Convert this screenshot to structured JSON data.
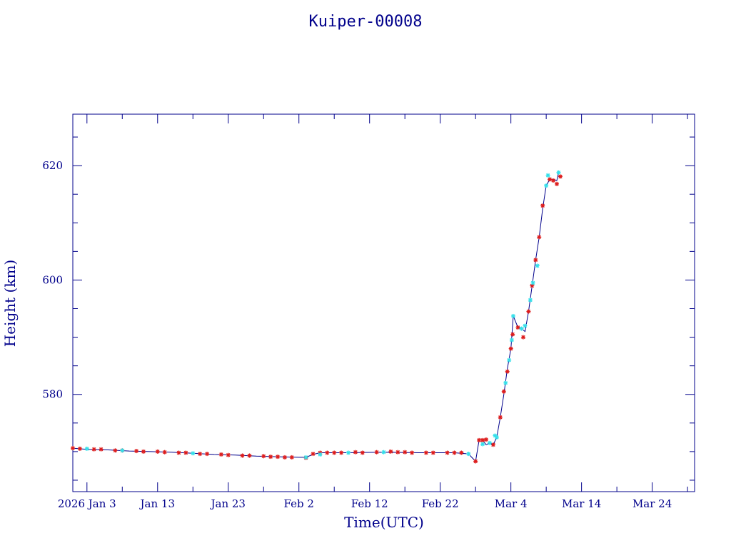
{
  "colors": {
    "axes": "#00008b",
    "line": "#00008b",
    "series_red": "#dd1c1c",
    "series_cyan": "#35e0ea"
  },
  "chart_data": {
    "type": "scatter",
    "title": "Kuiper-00008",
    "xlabel": "Time(UTC)",
    "ylabel": "Height (km)",
    "x_unit": "date (2026, UTC)",
    "xlim": [
      "2026-01-01",
      "2026-03-30"
    ],
    "ylim": [
      563,
      629
    ],
    "grid": false,
    "x_ticks": [
      {
        "date": "2026-01-03",
        "label": "2026 Jan  3"
      },
      {
        "date": "2026-01-13",
        "label": "Jan 13"
      },
      {
        "date": "2026-01-23",
        "label": "Jan 23"
      },
      {
        "date": "2026-02-02",
        "label": "Feb  2"
      },
      {
        "date": "2026-02-12",
        "label": "Feb 12"
      },
      {
        "date": "2026-02-22",
        "label": "Feb 22"
      },
      {
        "date": "2026-03-04",
        "label": "Mar  4"
      },
      {
        "date": "2026-03-14",
        "label": "Mar 14"
      },
      {
        "date": "2026-03-24",
        "label": "Mar 24"
      }
    ],
    "y_ticks": [
      580,
      600,
      620
    ],
    "series": [
      {
        "style": "line",
        "color": "#00008b",
        "points": [
          [
            "2026-01-01",
            570.6
          ],
          [
            "2026-01-03",
            570.4
          ],
          [
            "2026-01-06",
            570.3
          ],
          [
            "2026-01-09",
            570.1
          ],
          [
            "2026-01-12",
            570.0
          ],
          [
            "2026-01-15",
            569.9
          ],
          [
            "2026-01-18",
            569.7
          ],
          [
            "2026-01-21",
            569.5
          ],
          [
            "2026-01-24",
            569.4
          ],
          [
            "2026-01-27",
            569.2
          ],
          [
            "2026-01-30",
            569.1
          ],
          [
            "2026-02-02",
            569.0
          ],
          [
            "2026-02-03",
            569.0
          ],
          [
            "2026-02-04",
            569.5
          ],
          [
            "2026-02-05",
            569.8
          ],
          [
            "2026-02-09",
            569.8
          ],
          [
            "2026-02-14",
            569.9
          ],
          [
            "2026-02-19",
            569.8
          ],
          [
            "2026-02-24",
            569.8
          ],
          [
            "2026-02-26",
            569.6
          ],
          [
            "2026-02-27",
            568.3
          ],
          [
            "2026-02-27T12:00",
            572.0
          ],
          [
            "2026-02-28",
            572.0
          ],
          [
            "2026-02-28T12:00",
            571.2
          ],
          [
            "2026-03-01",
            571.5
          ],
          [
            "2026-03-01T12:00",
            571.2
          ],
          [
            "2026-03-02",
            572.5
          ],
          [
            "2026-03-02T12:00",
            576.0
          ],
          [
            "2026-03-03",
            580.0
          ],
          [
            "2026-03-03T12:00",
            584.5
          ],
          [
            "2026-03-04",
            588.0
          ],
          [
            "2026-03-04T08:00",
            593.7
          ],
          [
            "2026-03-05",
            591.7
          ],
          [
            "2026-03-05T12:00",
            591.5
          ],
          [
            "2026-03-06",
            591.0
          ],
          [
            "2026-03-06T12:00",
            594.5
          ],
          [
            "2026-03-07",
            599.0
          ],
          [
            "2026-03-07T12:00",
            603.5
          ],
          [
            "2026-03-08",
            607.5
          ],
          [
            "2026-03-08T12:00",
            612.5
          ],
          [
            "2026-03-09",
            616.5
          ],
          [
            "2026-03-09T12:00",
            617.6
          ],
          [
            "2026-03-10",
            617.6
          ],
          [
            "2026-03-10T12:00",
            617.4
          ],
          [
            "2026-03-10T18:00",
            618.8
          ]
        ]
      },
      {
        "style": "markers",
        "color": "#dd1c1c",
        "points": [
          [
            "2026-01-01",
            570.6
          ],
          [
            "2026-01-02",
            570.5
          ],
          [
            "2026-01-04",
            570.4
          ],
          [
            "2026-01-05",
            570.4
          ],
          [
            "2026-01-07",
            570.2
          ],
          [
            "2026-01-08",
            570.2
          ],
          [
            "2026-01-10",
            570.1
          ],
          [
            "2026-01-11",
            570.0
          ],
          [
            "2026-01-13",
            570.0
          ],
          [
            "2026-01-14",
            569.9
          ],
          [
            "2026-01-16",
            569.8
          ],
          [
            "2026-01-17",
            569.8
          ],
          [
            "2026-01-19",
            569.6
          ],
          [
            "2026-01-20",
            569.6
          ],
          [
            "2026-01-22",
            569.5
          ],
          [
            "2026-01-23",
            569.4
          ],
          [
            "2026-01-25",
            569.3
          ],
          [
            "2026-01-26",
            569.3
          ],
          [
            "2026-01-28",
            569.2
          ],
          [
            "2026-01-29",
            569.1
          ],
          [
            "2026-01-30",
            569.1
          ],
          [
            "2026-01-31",
            569.0
          ],
          [
            "2026-02-01",
            569.0
          ],
          [
            "2026-02-03",
            568.9
          ],
          [
            "2026-02-04",
            569.6
          ],
          [
            "2026-02-05",
            569.8
          ],
          [
            "2026-02-06",
            569.8
          ],
          [
            "2026-02-07",
            569.8
          ],
          [
            "2026-02-08",
            569.8
          ],
          [
            "2026-02-10",
            569.9
          ],
          [
            "2026-02-11",
            569.8
          ],
          [
            "2026-02-13",
            569.9
          ],
          [
            "2026-02-15",
            570.0
          ],
          [
            "2026-02-16",
            569.9
          ],
          [
            "2026-02-17",
            569.9
          ],
          [
            "2026-02-18",
            569.8
          ],
          [
            "2026-02-20",
            569.8
          ],
          [
            "2026-02-21",
            569.8
          ],
          [
            "2026-02-23",
            569.8
          ],
          [
            "2026-02-24",
            569.8
          ],
          [
            "2026-02-25",
            569.8
          ],
          [
            "2026-02-27",
            568.3
          ],
          [
            "2026-02-27T12:00",
            572.0
          ],
          [
            "2026-02-28",
            572.0
          ],
          [
            "2026-02-28T12:00",
            572.1
          ],
          [
            "2026-03-01T12:00",
            571.2
          ],
          [
            "2026-03-02T12:00",
            576.0
          ],
          [
            "2026-03-03",
            580.5
          ],
          [
            "2026-03-03T12:00",
            584.0
          ],
          [
            "2026-03-04",
            588.0
          ],
          [
            "2026-03-04T06:00",
            590.5
          ],
          [
            "2026-03-05",
            591.7
          ],
          [
            "2026-03-05T18:00",
            590.0
          ],
          [
            "2026-03-06T12:00",
            594.5
          ],
          [
            "2026-03-07",
            599.0
          ],
          [
            "2026-03-07T12:00",
            603.5
          ],
          [
            "2026-03-08",
            607.5
          ],
          [
            "2026-03-08T12:00",
            613.0
          ],
          [
            "2026-03-09T12:00",
            617.6
          ],
          [
            "2026-03-10",
            617.4
          ],
          [
            "2026-03-10T12:00",
            616.8
          ],
          [
            "2026-03-11",
            618.1
          ]
        ]
      },
      {
        "style": "markers",
        "color": "#35e0ea",
        "points": [
          [
            "2026-01-03",
            570.5
          ],
          [
            "2026-01-08",
            570.2
          ],
          [
            "2026-01-18",
            569.7
          ],
          [
            "2026-02-03",
            569.0
          ],
          [
            "2026-02-05",
            569.5
          ],
          [
            "2026-02-09",
            569.8
          ],
          [
            "2026-02-14",
            569.9
          ],
          [
            "2026-02-26",
            569.6
          ],
          [
            "2026-02-28",
            571.3
          ],
          [
            "2026-03-01",
            571.5
          ],
          [
            "2026-03-01T18:00",
            572.8
          ],
          [
            "2026-03-02",
            572.5
          ],
          [
            "2026-03-03T06:00",
            582.0
          ],
          [
            "2026-03-03T18:00",
            586.0
          ],
          [
            "2026-03-04T03:00",
            589.5
          ],
          [
            "2026-03-04T08:00",
            593.7
          ],
          [
            "2026-03-05T12:00",
            591.5
          ],
          [
            "2026-03-06",
            592.0
          ],
          [
            "2026-03-06T18:00",
            596.5
          ],
          [
            "2026-03-07T03:00",
            599.5
          ],
          [
            "2026-03-07T18:00",
            602.5
          ],
          [
            "2026-03-09",
            616.5
          ],
          [
            "2026-03-09T06:00",
            618.3
          ],
          [
            "2026-03-10T18:00",
            618.8
          ]
        ]
      }
    ]
  }
}
